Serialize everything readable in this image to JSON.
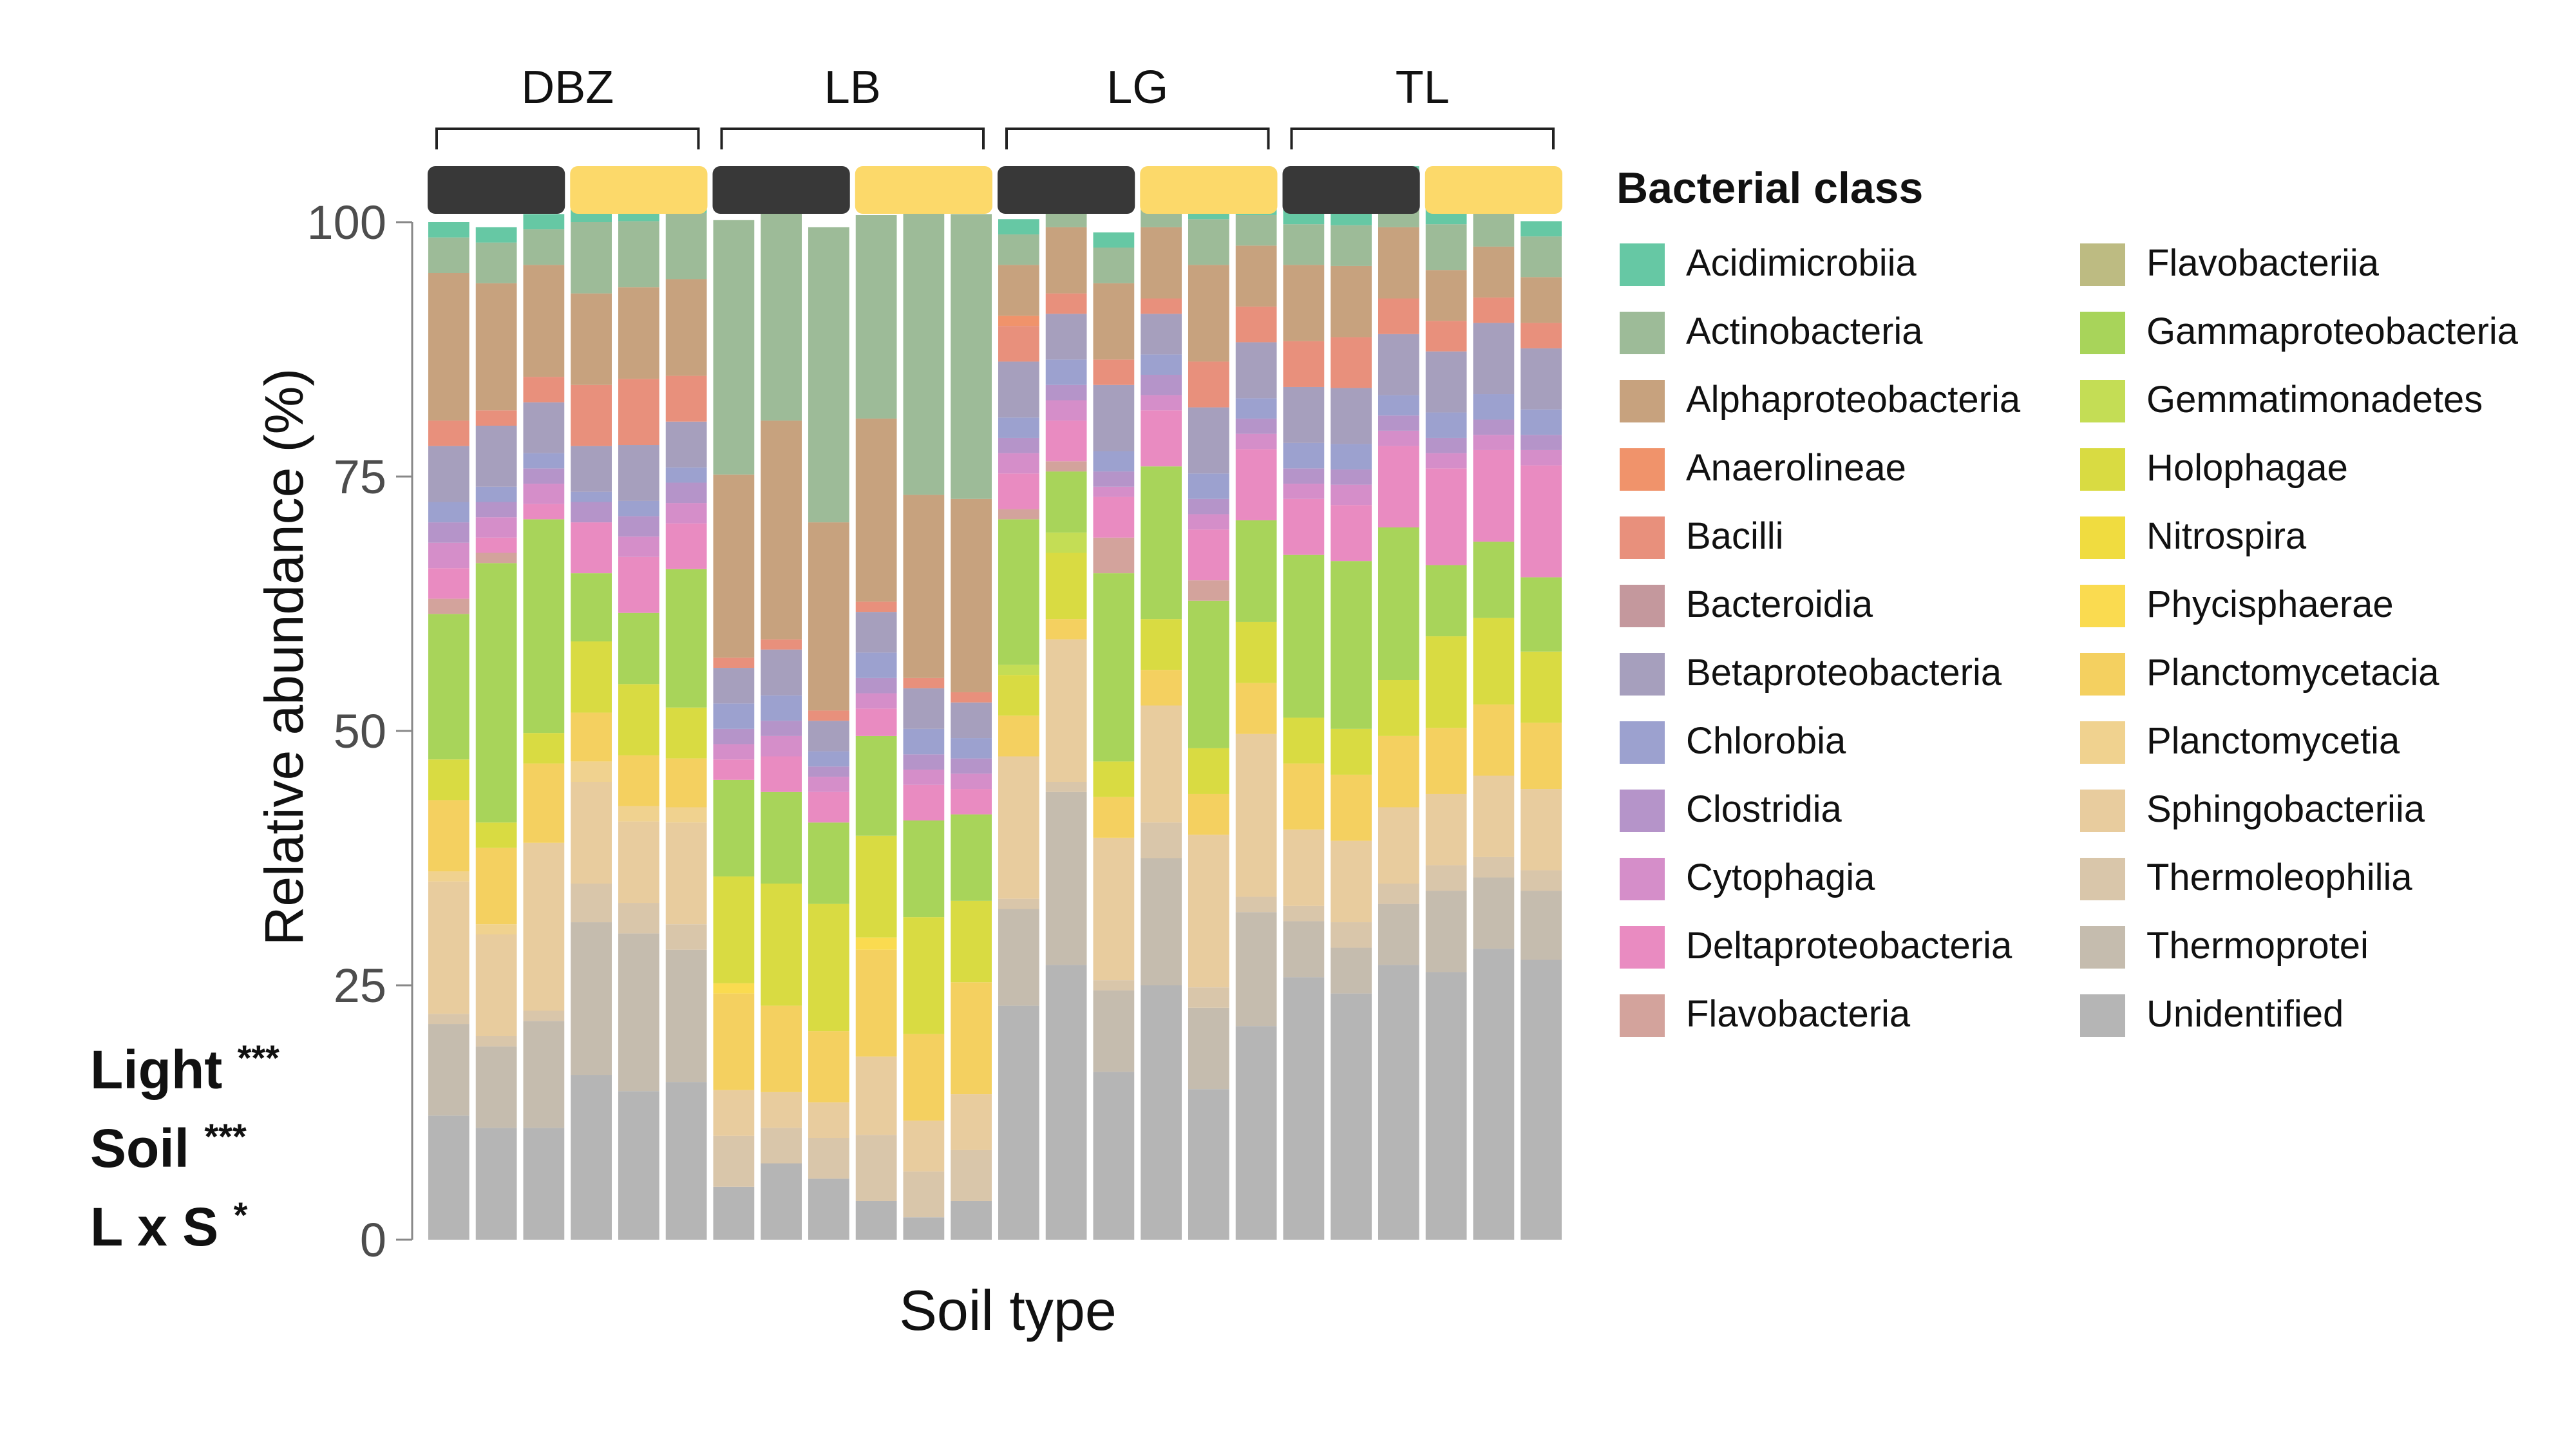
{
  "chart_data": {
    "type": "bar",
    "stacked": true,
    "xlabel": "Soil type",
    "ylabel": "Relative abundance (%)",
    "ylim": [
      0,
      100
    ],
    "yticks": [
      0,
      25,
      50,
      75,
      100
    ],
    "grid": false,
    "legend_title": "Bacterial class",
    "legend_position": "right",
    "groups": [
      {
        "label": "DBZ",
        "bars": 6
      },
      {
        "label": "LB",
        "bars": 6
      },
      {
        "label": "LG",
        "bars": 6
      },
      {
        "label": "TL",
        "bars": 6
      }
    ],
    "treatment_colors": [
      "#383838",
      "#fcd96a"
    ],
    "bar_treatments": [
      0,
      0,
      0,
      1,
      1,
      1,
      0,
      0,
      0,
      1,
      1,
      1,
      0,
      0,
      0,
      1,
      1,
      1,
      0,
      0,
      0,
      1,
      1,
      1
    ],
    "series": [
      {
        "name": "Unidentified",
        "color": "#b5b5b5",
        "values": [
          12.2,
          11.0,
          11.0,
          16.2,
          14.6,
          15.5,
          5.2,
          7.5,
          6.0,
          3.8,
          2.2,
          3.8,
          23.0,
          27.0,
          16.5,
          25.0,
          14.8,
          21.0,
          25.8,
          24.2,
          27.0,
          26.3,
          28.6,
          27.5
        ]
      },
      {
        "name": "Thermoprotei",
        "color": "#c5bcae",
        "values": [
          9.0,
          8.0,
          10.5,
          15.0,
          15.5,
          13.0,
          0,
          0,
          0,
          0,
          0,
          0,
          9.5,
          17.0,
          8.0,
          12.5,
          8.0,
          11.2,
          5.5,
          4.5,
          6.0,
          8.0,
          7.0,
          6.8
        ]
      },
      {
        "name": "Thermoleophilia",
        "color": "#d9c6aa",
        "values": [
          1.0,
          1.0,
          1.0,
          3.8,
          3.0,
          2.5,
          5.0,
          3.5,
          4.0,
          6.5,
          4.5,
          5.0,
          1.0,
          1.0,
          1.0,
          3.5,
          2.0,
          1.5,
          1.5,
          2.5,
          2.0,
          2.5,
          2.0,
          2.0
        ]
      },
      {
        "name": "Sphingobacteriia",
        "color": "#e8cc9e",
        "values": [
          13.0,
          10.0,
          16.5,
          10.0,
          8.0,
          10.0,
          4.5,
          3.5,
          3.5,
          7.7,
          5.0,
          5.5,
          14.0,
          14.0,
          14.0,
          11.5,
          15.0,
          16.0,
          7.5,
          8.0,
          7.5,
          7.0,
          8.0,
          8.0
        ]
      },
      {
        "name": "Planctomycetia",
        "color": "#f0d28f",
        "values": [
          1.0,
          1.0,
          0,
          2.0,
          1.5,
          1.5,
          0,
          0,
          0,
          0,
          0,
          0,
          0,
          0,
          0,
          0,
          0,
          0,
          0,
          0,
          0,
          0,
          0,
          0
        ]
      },
      {
        "name": "Planctomycetacia",
        "color": "#f4d060",
        "values": [
          7.0,
          7.5,
          7.8,
          4.8,
          5.0,
          4.8,
          9.5,
          8.5,
          7.0,
          10.5,
          8.5,
          11.0,
          4.0,
          2.0,
          4.0,
          3.5,
          4.0,
          5.0,
          6.5,
          6.5,
          7.0,
          6.5,
          7.0,
          6.5
        ]
      },
      {
        "name": "Phycisphaerae",
        "color": "#fadb50",
        "values": [
          0,
          0,
          0,
          0,
          0,
          0,
          1.0,
          0,
          0,
          1.2,
          0,
          0,
          0,
          0,
          0,
          0,
          0,
          0,
          0,
          0,
          0,
          0,
          0,
          0
        ]
      },
      {
        "name": "Nitrospira",
        "color": "#f0dc40",
        "values": [
          0,
          0,
          0,
          0,
          0,
          0,
          0,
          0,
          0,
          0,
          0,
          0,
          0,
          0,
          0,
          0,
          0,
          0,
          0,
          0,
          0,
          0,
          0,
          0
        ]
      },
      {
        "name": "Holophagae",
        "color": "#d9db42",
        "values": [
          4.0,
          2.5,
          3.0,
          7.0,
          7.0,
          5.0,
          10.5,
          12.0,
          12.5,
          10.0,
          11.5,
          8.0,
          4.0,
          6.5,
          3.5,
          5.0,
          4.5,
          6.0,
          4.5,
          4.5,
          5.5,
          9.0,
          8.5,
          7.0
        ]
      },
      {
        "name": "Gemmatimonadetes",
        "color": "#c4dd55",
        "values": [
          0,
          0,
          0,
          0,
          0,
          0,
          0,
          0,
          0,
          0,
          0,
          0,
          1.0,
          2.0,
          0,
          0,
          0,
          0,
          0,
          0,
          0,
          0,
          0,
          0
        ]
      },
      {
        "name": "Gammaproteobacteria",
        "color": "#a8d45a",
        "values": [
          14.3,
          25.5,
          21.0,
          6.7,
          7.0,
          13.6,
          9.5,
          9.0,
          8.0,
          9.8,
          9.5,
          8.5,
          14.3,
          6.0,
          18.5,
          15.0,
          14.5,
          10.0,
          16.0,
          16.5,
          15.0,
          7.0,
          7.5,
          7.3
        ]
      },
      {
        "name": "Flavobacteriia",
        "color": "#bdbb82",
        "values": [
          0,
          0,
          0,
          0,
          0,
          0,
          0,
          0,
          0,
          0,
          0,
          0,
          0,
          0,
          0,
          0,
          0,
          0,
          0,
          0,
          0,
          0,
          0,
          0
        ]
      },
      {
        "name": "Flavobacteria",
        "color": "#d3a39c",
        "values": [
          1.5,
          1.0,
          0,
          0,
          0,
          0,
          0,
          0,
          0,
          0,
          0,
          0,
          1.0,
          1.0,
          3.5,
          0,
          2.0,
          0,
          0,
          0,
          0,
          0,
          0,
          0
        ]
      },
      {
        "name": "Deltaproteobacteria",
        "color": "#e98bc1",
        "values": [
          3.0,
          1.5,
          1.5,
          5.0,
          5.5,
          4.5,
          2.0,
          3.5,
          3.0,
          2.7,
          3.5,
          2.5,
          3.5,
          4.0,
          4.0,
          5.5,
          5.0,
          7.0,
          5.5,
          5.5,
          8.0,
          9.5,
          9.0,
          11.0
        ]
      },
      {
        "name": "Cytophagia",
        "color": "#d58ec9",
        "values": [
          2.5,
          2.0,
          2.0,
          0,
          2.0,
          2.0,
          1.5,
          2.0,
          1.5,
          1.5,
          1.5,
          1.5,
          2.0,
          2.0,
          1.0,
          1.5,
          1.5,
          1.5,
          1.5,
          2.0,
          1.5,
          1.5,
          1.5,
          1.5
        ]
      },
      {
        "name": "Clostridia",
        "color": "#b594c9",
        "values": [
          2.0,
          1.5,
          1.5,
          2.0,
          2.0,
          2.0,
          1.5,
          1.5,
          1.0,
          1.5,
          1.5,
          1.5,
          1.5,
          1.5,
          1.5,
          2.0,
          1.5,
          1.5,
          1.5,
          1.5,
          1.5,
          1.5,
          1.5,
          1.5
        ]
      },
      {
        "name": "Chlorobia",
        "color": "#9ca1cf",
        "values": [
          2.0,
          1.5,
          1.5,
          1.0,
          1.5,
          1.5,
          2.5,
          2.5,
          1.5,
          2.5,
          2.5,
          2.0,
          2.0,
          2.5,
          2.0,
          2.0,
          2.5,
          2.0,
          2.5,
          2.5,
          2.0,
          2.5,
          2.5,
          2.5
        ]
      },
      {
        "name": "Betaproteobacteria",
        "color": "#a69fbd",
        "values": [
          5.5,
          6.0,
          5.0,
          4.5,
          5.5,
          4.5,
          3.5,
          4.5,
          3.0,
          4.0,
          4.0,
          3.5,
          5.5,
          4.5,
          6.5,
          4.0,
          6.5,
          5.5,
          5.5,
          5.5,
          6.0,
          6.0,
          7.0,
          6.0
        ]
      },
      {
        "name": "Bacteroidia",
        "color": "#c4989d",
        "values": [
          0,
          0,
          0,
          0,
          0,
          0,
          0,
          0,
          0,
          0,
          0,
          0,
          0,
          0,
          0,
          0,
          0,
          0,
          0,
          0,
          0,
          0,
          0,
          0
        ]
      },
      {
        "name": "Bacilli",
        "color": "#e8907c",
        "values": [
          2.5,
          1.5,
          2.5,
          6.0,
          6.5,
          4.5,
          1.0,
          1.0,
          1.0,
          1.0,
          1.0,
          1.0,
          3.5,
          2.0,
          2.5,
          1.5,
          4.5,
          3.5,
          4.5,
          5.0,
          3.5,
          3.0,
          2.5,
          2.5
        ]
      },
      {
        "name": "Anaerolineae",
        "color": "#f0936b",
        "values": [
          0,
          0,
          0,
          0,
          0,
          0,
          0,
          0,
          0,
          0,
          0,
          0,
          1.0,
          0,
          0,
          0,
          0,
          0,
          0,
          0,
          0,
          0,
          0,
          0
        ]
      },
      {
        "name": "Alphaproteobacteria",
        "color": "#c7a27e",
        "values": [
          14.5,
          12.5,
          11.0,
          9.0,
          9.0,
          9.5,
          18.0,
          21.5,
          18.5,
          18.0,
          18.0,
          19.0,
          5.0,
          6.5,
          7.5,
          7.0,
          9.5,
          6.0,
          7.5,
          7.0,
          7.0,
          5.0,
          5.0,
          4.5
        ]
      },
      {
        "name": "Actinobacteria",
        "color": "#9dbb98",
        "values": [
          3.5,
          4.0,
          3.5,
          7.0,
          6.5,
          6.5,
          25.0,
          24.0,
          29.0,
          20.0,
          28.0,
          28.0,
          3.0,
          3.0,
          3.5,
          3.5,
          4.5,
          3.0,
          4.0,
          4.0,
          4.5,
          4.5,
          3.5,
          4.0
        ]
      },
      {
        "name": "Acidimicrobiia",
        "color": "#66c8a4",
        "values": [
          1.5,
          1.5,
          1.5,
          1.5,
          1.5,
          1.5,
          0,
          0,
          0,
          0,
          0,
          0,
          1.5,
          1.5,
          1.5,
          1.5,
          1.5,
          1.5,
          1.5,
          1.5,
          1.5,
          1.5,
          1.5,
          1.5
        ]
      }
    ],
    "legend_order": [
      "Acidimicrobiia",
      "Actinobacteria",
      "Alphaproteobacteria",
      "Anaerolineae",
      "Bacilli",
      "Bacteroidia",
      "Betaproteobacteria",
      "Chlorobia",
      "Clostridia",
      "Cytophagia",
      "Deltaproteobacteria",
      "Flavobacteria",
      "Flavobacteriia",
      "Gammaproteobacteria",
      "Gemmatimonadetes",
      "Holophagae",
      "Nitrospira",
      "Phycisphaerae",
      "Planctomycetacia",
      "Planctomycetia",
      "Sphingobacteriia",
      "Thermoleophilia",
      "Thermoprotei",
      "Unidentified"
    ],
    "annotations": [
      {
        "label": "Light",
        "stars": "***"
      },
      {
        "label": "Soil",
        "stars": "***"
      },
      {
        "label": "L x S",
        "stars": "*"
      }
    ]
  }
}
